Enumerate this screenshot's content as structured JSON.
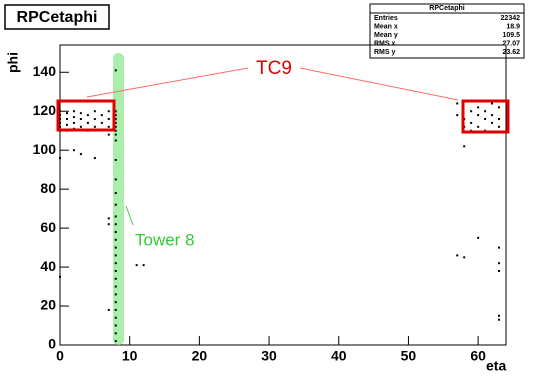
{
  "chart_data": {
    "type": "scatter",
    "title": "RPCetaphi",
    "x_label": "eta",
    "y_label": "phi",
    "xlim": [
      0,
      64
    ],
    "ylim": [
      0,
      154
    ],
    "xticks": [
      0,
      10,
      20,
      30,
      40,
      50,
      60
    ],
    "yticks": [
      0,
      20,
      40,
      60,
      80,
      100,
      120,
      140
    ],
    "color": "#000000",
    "x": [
      0,
      0,
      0,
      0,
      0,
      0,
      1,
      1,
      1,
      1,
      2,
      2,
      2,
      2,
      3,
      3,
      3,
      4,
      4,
      4,
      5,
      5,
      5,
      6,
      6,
      7,
      7,
      7,
      7,
      8,
      8,
      8,
      8,
      8,
      8,
      8,
      8,
      8,
      8,
      8,
      8,
      8,
      8,
      8,
      8,
      8,
      8,
      8,
      8,
      8,
      8,
      8,
      8,
      8,
      8,
      8,
      8,
      8,
      8,
      0,
      2,
      3,
      5,
      7,
      7,
      7,
      11,
      12,
      57,
      58,
      60,
      63,
      63,
      63,
      63,
      63,
      0,
      57,
      57,
      58,
      58,
      58,
      59,
      59,
      59,
      60,
      60,
      60,
      61,
      61,
      61,
      62,
      62,
      62,
      63,
      63,
      63
    ],
    "y": [
      120,
      118,
      116,
      114,
      112,
      110,
      119,
      116,
      113,
      110,
      120,
      117,
      114,
      111,
      119,
      116,
      112,
      118,
      114,
      110,
      120,
      116,
      112,
      118,
      114,
      120,
      116,
      112,
      108,
      141,
      120,
      118,
      116,
      114,
      112,
      110,
      108,
      105,
      95,
      85,
      78,
      72,
      66,
      62,
      58,
      54,
      50,
      46,
      42,
      38,
      34,
      30,
      26,
      22,
      18,
      14,
      10,
      6,
      2,
      96,
      100,
      98,
      96,
      65,
      62,
      18,
      41,
      41,
      46,
      45,
      55,
      50,
      42,
      38,
      15,
      13,
      35,
      124,
      118,
      116,
      112,
      102,
      120,
      114,
      110,
      122,
      118,
      112,
      120,
      116,
      110,
      124,
      118,
      114,
      122,
      116,
      112
    ],
    "stats": {
      "title": "RPCetaphi",
      "rows": [
        [
          "Entries",
          "22342"
        ],
        [
          "Mean x",
          "18.9"
        ],
        [
          "Mean y",
          "109.5"
        ],
        [
          "RMS x",
          "27.07"
        ],
        [
          "RMS y",
          "23.62"
        ]
      ]
    },
    "annotations": [
      "TC9",
      "Tower 8"
    ]
  }
}
